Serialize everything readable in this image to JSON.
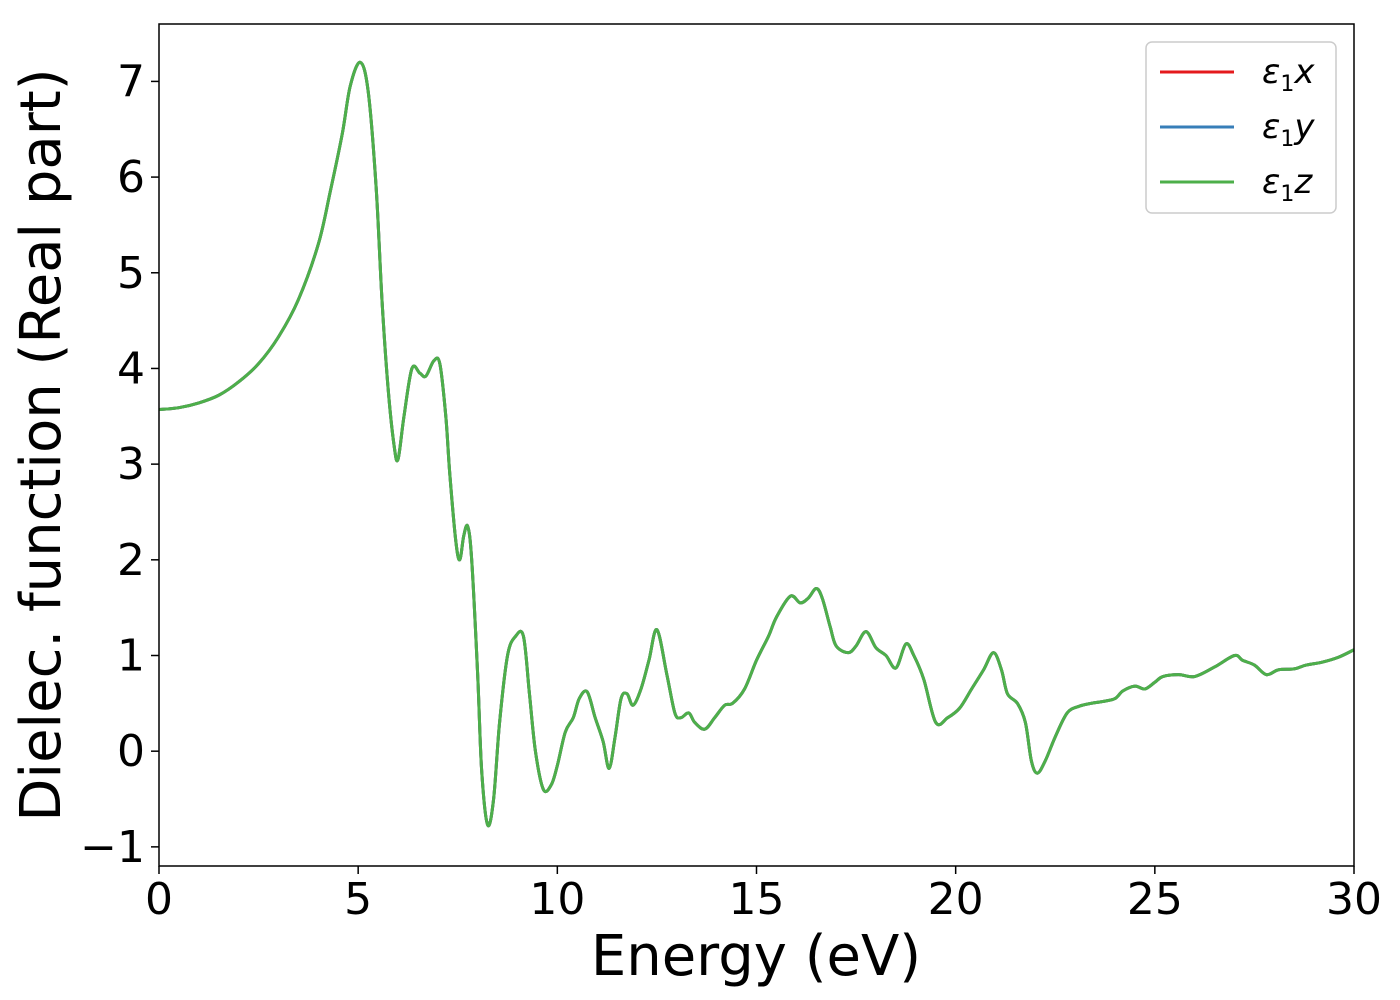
{
  "chart_data": {
    "type": "line",
    "title": "",
    "xlabel": "Energy (eV)",
    "ylabel": "Dielec. function (Real part)",
    "xlim": [
      0,
      30
    ],
    "ylim": [
      -1.2,
      7.6
    ],
    "xticks": [
      0,
      5,
      10,
      15,
      20,
      25,
      30
    ],
    "xtick_labels": [
      "0",
      "5",
      "10",
      "15",
      "20",
      "25",
      "30"
    ],
    "yticks": [
      -1,
      0,
      1,
      2,
      3,
      4,
      5,
      6,
      7
    ],
    "ytick_labels": [
      "−1",
      "0",
      "1",
      "2",
      "3",
      "4",
      "5",
      "6",
      "7"
    ],
    "grid": false,
    "legend_position": "top-right",
    "series": [
      {
        "name": "ε1x",
        "legend_main": "ε",
        "legend_sub": "1",
        "legend_tail": "x",
        "color": "#e41a1c",
        "x": [
          0,
          0.5,
          1.0,
          1.5,
          2.0,
          2.5,
          3.0,
          3.5,
          4.0,
          4.3,
          4.6,
          4.8,
          5.05,
          5.25,
          5.45,
          5.6,
          5.75,
          5.9,
          6.0,
          6.15,
          6.35,
          6.55,
          6.7,
          6.9,
          7.05,
          7.2,
          7.3,
          7.45,
          7.55,
          7.65,
          7.75,
          7.85,
          8.0,
          8.1,
          8.25,
          8.4,
          8.55,
          8.75,
          8.95,
          9.15,
          9.3,
          9.45,
          9.65,
          9.85,
          10.0,
          10.2,
          10.4,
          10.55,
          10.75,
          10.95,
          11.15,
          11.3,
          11.45,
          11.6,
          11.75,
          11.9,
          12.1,
          12.3,
          12.5,
          12.75,
          12.95,
          13.1,
          13.3,
          13.45,
          13.7,
          13.95,
          14.2,
          14.4,
          14.7,
          15.0,
          15.3,
          15.5,
          15.85,
          16.1,
          16.3,
          16.5,
          16.65,
          16.85,
          17.0,
          17.3,
          17.5,
          17.75,
          18.0,
          18.25,
          18.5,
          18.75,
          18.95,
          19.2,
          19.5,
          19.8,
          20.1,
          20.4,
          20.7,
          20.95,
          21.15,
          21.3,
          21.55,
          21.75,
          21.9,
          22.05,
          22.25,
          22.5,
          22.8,
          23.1,
          23.4,
          23.7,
          24.0,
          24.2,
          24.5,
          24.75,
          25.0,
          25.2,
          25.6,
          26.0,
          26.5,
          27.0,
          27.2,
          27.5,
          27.8,
          28.1,
          28.5,
          28.8,
          29.2,
          29.6,
          30.0
        ],
        "y": [
          3.57,
          3.59,
          3.64,
          3.72,
          3.86,
          4.05,
          4.33,
          4.72,
          5.3,
          5.85,
          6.45,
          6.95,
          7.2,
          6.9,
          5.9,
          4.7,
          3.8,
          3.2,
          3.05,
          3.5,
          4.0,
          3.95,
          3.92,
          4.08,
          4.05,
          3.5,
          2.9,
          2.2,
          2.0,
          2.25,
          2.35,
          2.0,
          0.8,
          -0.2,
          -0.77,
          -0.5,
          0.3,
          1.0,
          1.2,
          1.2,
          0.6,
          0.0,
          -0.4,
          -0.35,
          -0.15,
          0.2,
          0.35,
          0.55,
          0.62,
          0.35,
          0.1,
          -0.18,
          0.15,
          0.55,
          0.6,
          0.48,
          0.65,
          0.95,
          1.27,
          0.8,
          0.4,
          0.35,
          0.4,
          0.3,
          0.23,
          0.35,
          0.48,
          0.5,
          0.65,
          0.95,
          1.2,
          1.4,
          1.62,
          1.55,
          1.6,
          1.7,
          1.6,
          1.3,
          1.1,
          1.03,
          1.1,
          1.25,
          1.08,
          1.0,
          0.87,
          1.12,
          1.0,
          0.75,
          0.3,
          0.35,
          0.45,
          0.65,
          0.85,
          1.03,
          0.85,
          0.6,
          0.5,
          0.3,
          -0.1,
          -0.23,
          -0.1,
          0.15,
          0.4,
          0.47,
          0.5,
          0.52,
          0.55,
          0.63,
          0.68,
          0.65,
          0.72,
          0.78,
          0.8,
          0.78,
          0.88,
          1.0,
          0.95,
          0.9,
          0.8,
          0.85,
          0.86,
          0.9,
          0.93,
          0.98,
          1.06
        ]
      },
      {
        "name": "ε1y",
        "legend_main": "ε",
        "legend_sub": "1",
        "legend_tail": "y",
        "color": "#377eb8",
        "same_as": 0
      },
      {
        "name": "ε1z",
        "legend_main": "ε",
        "legend_sub": "1",
        "legend_tail": "z",
        "color": "#4daf4a",
        "same_as": 0
      }
    ]
  }
}
